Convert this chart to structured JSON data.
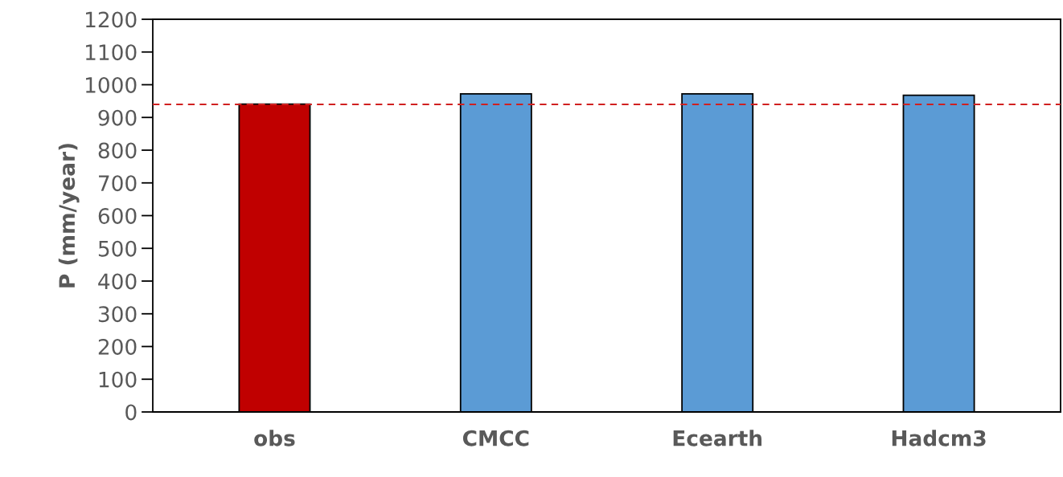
{
  "chart_data": {
    "type": "bar",
    "ylabel": "P (mm/year)",
    "categories": [
      "obs",
      "CMCC",
      "Ecearth",
      "Hadcm3"
    ],
    "values": [
      941,
      972,
      972,
      968
    ],
    "colors": [
      "#c00000",
      "#5b9bd5",
      "#5b9bd5",
      "#5b9bd5"
    ],
    "ylim": [
      0,
      1200
    ],
    "yticks": [
      0,
      100,
      200,
      300,
      400,
      500,
      600,
      700,
      800,
      900,
      1000,
      1100,
      1200
    ],
    "ref_lines": [
      {
        "axis": "y",
        "value": 940,
        "color": "#d02020",
        "line_style": "dashed"
      }
    ],
    "grid": false,
    "legend": false
  }
}
